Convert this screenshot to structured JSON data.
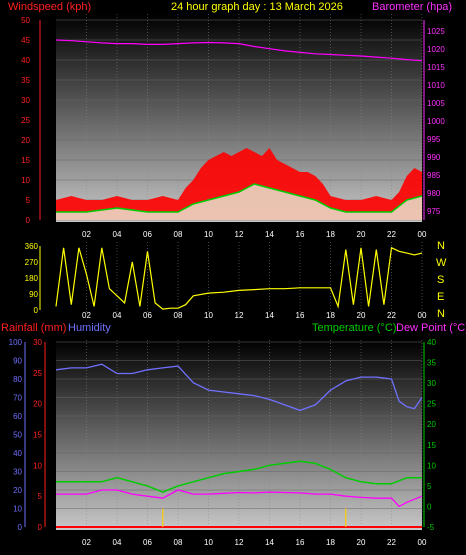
{
  "header": {
    "windspeed_label": "Windspeed (kph)",
    "title": "24 hour graph day : 13 March 2026",
    "barometer_label": "Barometer (hpa)"
  },
  "compass": [
    "N",
    "W",
    "S",
    "E",
    "N"
  ],
  "bottom_header": {
    "rainfall_label": "Rainfall (mm)",
    "humidity_label": "Humidity",
    "temperature_label": "Temperature (°C)",
    "dewpoint_label": "Dew Point (°C)"
  },
  "colors": {
    "wind_gust": "#ff0000",
    "wind_avg": "#00cc00",
    "wind_low": "#e6ffe6",
    "barometer": "#ff00ff",
    "direction": "#ffff00",
    "humidity": "#7070ff",
    "temperature": "#00cc00",
    "dewpoint": "#ff00ff",
    "rainfall": "#ff0000",
    "rain_rate": "#ffcc00"
  },
  "chart_data": [
    {
      "type": "line",
      "name": "wind-barometer",
      "x_ticks": [
        "02",
        "04",
        "06",
        "08",
        "10",
        "12",
        "14",
        "16",
        "18",
        "20",
        "22",
        "00"
      ],
      "y_left_ticks": [
        0,
        5,
        10,
        15,
        20,
        25,
        30,
        35,
        40,
        45,
        50
      ],
      "ylim_left": [
        0,
        50
      ],
      "y_right_ticks": [
        975,
        980,
        985,
        990,
        995,
        1000,
        1005,
        1010,
        1015,
        1020,
        1025
      ],
      "ylim_right": [
        972.5,
        1027.5
      ],
      "grid": true,
      "series": [
        {
          "name": "Windspeed (kph)",
          "hours": [
            0,
            1,
            2,
            3,
            4,
            5,
            6,
            7,
            8,
            8.5,
            9,
            9.5,
            10,
            10.5,
            11,
            11.5,
            12,
            12.5,
            13,
            13.5,
            14,
            14.5,
            15,
            15.5,
            16,
            16.5,
            17,
            17.5,
            18,
            19,
            20,
            21,
            22,
            22.5,
            23,
            23.5,
            24
          ],
          "values": [
            5,
            6,
            5,
            5,
            6,
            5,
            5,
            6,
            5,
            8,
            10,
            13,
            15,
            16,
            17,
            16,
            17,
            18,
            17,
            16,
            18,
            15,
            14,
            13,
            12,
            12,
            11,
            9,
            6,
            5,
            5,
            6,
            5,
            7,
            11,
            13,
            12
          ]
        },
        {
          "name": "Average wind",
          "hours": [
            0,
            2,
            4,
            6,
            8,
            9,
            10,
            11,
            12,
            13,
            14,
            15,
            16,
            17,
            18,
            19,
            20,
            21,
            22,
            23,
            24
          ],
          "values": [
            2,
            2,
            3,
            2,
            2,
            4,
            5,
            6,
            7,
            9,
            8,
            7,
            6,
            5,
            3,
            2,
            2,
            2,
            2,
            5,
            6
          ]
        },
        {
          "name": "Barometer (hpa)",
          "hours": [
            0,
            1,
            2,
            3,
            4,
            5,
            6,
            7,
            8,
            9,
            10,
            11,
            12,
            13,
            14,
            15,
            16,
            17,
            18,
            19,
            20,
            21,
            22,
            23,
            24
          ],
          "values": [
            1022,
            1021.8,
            1021.5,
            1021.2,
            1021,
            1021,
            1020.8,
            1020.8,
            1021,
            1021.2,
            1021.3,
            1021.2,
            1021,
            1020.2,
            1019.6,
            1019,
            1018.6,
            1018.2,
            1018,
            1017.8,
            1017.6,
            1017.3,
            1017,
            1016.6,
            1016.3
          ]
        }
      ]
    },
    {
      "type": "line",
      "name": "wind-direction",
      "x_ticks": [
        "02",
        "04",
        "06",
        "08",
        "10",
        "12",
        "14",
        "16",
        "18",
        "20",
        "22",
        "00"
      ],
      "y_ticks": [
        0,
        90,
        180,
        270,
        360
      ],
      "ylim": [
        0,
        360
      ],
      "series": [
        {
          "name": "Wind direction",
          "hours": [
            0,
            0.5,
            1,
            1.5,
            2,
            2.5,
            3,
            3.5,
            4,
            4.5,
            5,
            5.5,
            6,
            6.5,
            7,
            7.5,
            8,
            8.5,
            9,
            10,
            11,
            12,
            13,
            14,
            15,
            16,
            17,
            18,
            18.5,
            19,
            19.5,
            20,
            20.5,
            21,
            21.5,
            22,
            22.5,
            23,
            23.5,
            24
          ],
          "values": [
            20,
            350,
            30,
            350,
            200,
            20,
            350,
            120,
            80,
            40,
            270,
            20,
            330,
            40,
            5,
            10,
            10,
            30,
            80,
            95,
            100,
            110,
            115,
            120,
            120,
            125,
            125,
            125,
            20,
            340,
            30,
            350,
            20,
            340,
            30,
            350,
            330,
            320,
            310,
            320
          ]
        }
      ]
    },
    {
      "type": "line",
      "name": "temp-humidity-rain",
      "x_ticks": [
        "02",
        "04",
        "06",
        "08",
        "10",
        "12",
        "14",
        "16",
        "18",
        "20",
        "22",
        "00"
      ],
      "y_humidity_ticks": [
        0,
        10,
        20,
        30,
        40,
        50,
        60,
        70,
        80,
        90,
        100
      ],
      "ylim_humidity": [
        0,
        100
      ],
      "y_rain_ticks": [
        0,
        5,
        10,
        15,
        20,
        25,
        30
      ],
      "ylim_rain": [
        0,
        30
      ],
      "y_temp_ticks": [
        -5,
        0,
        5,
        10,
        15,
        20,
        25,
        30,
        35,
        40
      ],
      "ylim_temp": [
        -5,
        40
      ],
      "grid": true,
      "series": [
        {
          "name": "Humidity",
          "hours": [
            0,
            1,
            2,
            3,
            4,
            5,
            6,
            7,
            8,
            9,
            10,
            11,
            12,
            13,
            14,
            15,
            16,
            17,
            18,
            19,
            20,
            21,
            22,
            22.5,
            23,
            23.5,
            24
          ],
          "values": [
            85,
            86,
            86,
            88,
            83,
            83,
            85,
            86,
            87,
            78,
            74,
            73,
            72,
            71,
            69,
            66,
            63,
            66,
            74,
            79,
            81,
            81,
            80,
            68,
            65,
            64,
            70
          ]
        },
        {
          "name": "Temperature (°C)",
          "hours": [
            0,
            1,
            2,
            3,
            4,
            5,
            6,
            7,
            8,
            9,
            10,
            11,
            12,
            13,
            14,
            15,
            16,
            17,
            18,
            19,
            20,
            21,
            22,
            23,
            24
          ],
          "values": [
            6,
            6,
            6,
            6,
            7,
            6,
            5,
            3.5,
            5,
            6,
            7,
            8,
            8.5,
            9,
            10,
            10.5,
            11,
            10.5,
            9,
            7,
            6,
            5.5,
            5.5,
            7,
            7
          ]
        },
        {
          "name": "Dew Point (°C)",
          "hours": [
            0,
            1,
            2,
            3,
            4,
            5,
            6,
            7,
            8,
            9,
            10,
            11,
            12,
            13,
            14,
            15,
            16,
            17,
            18,
            19,
            20,
            21,
            22,
            22.5,
            23,
            24
          ],
          "values": [
            3,
            3,
            3,
            4,
            4,
            3,
            2.5,
            2,
            4,
            3,
            3,
            3.2,
            3.4,
            3.3,
            3.5,
            3.4,
            3.3,
            3,
            3,
            2.5,
            2.2,
            2,
            2,
            0,
            1,
            2.5
          ]
        },
        {
          "name": "Rainfall (mm)",
          "hours": [
            0,
            24
          ],
          "values": [
            0,
            0
          ]
        },
        {
          "name": "Rain rate",
          "hours": [
            7,
            19
          ],
          "values": [
            3,
            3
          ]
        }
      ]
    }
  ]
}
